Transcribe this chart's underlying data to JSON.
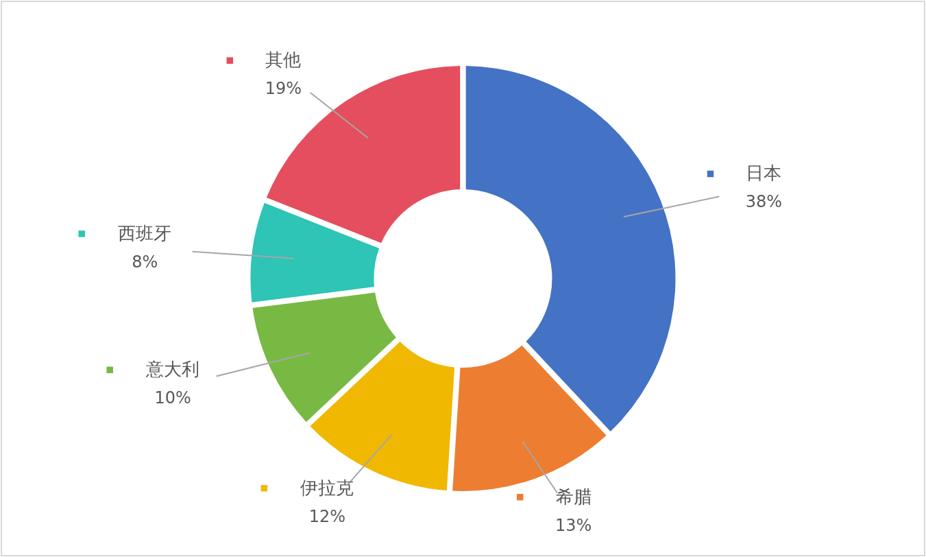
{
  "chart_data": {
    "type": "donut",
    "categories": [
      "日本",
      "希腊",
      "伊拉克",
      "意大利",
      "西班牙",
      "其他"
    ],
    "values": [
      38,
      13,
      12,
      10,
      8,
      19
    ],
    "colors": [
      "#4472c4",
      "#ed7d31",
      "#f0b800",
      "#78b943",
      "#2ec4b6",
      "#e54e5e"
    ],
    "value_labels": [
      "38%",
      "13%",
      "12%",
      "10%",
      "8%",
      "19%"
    ],
    "legend": true
  }
}
